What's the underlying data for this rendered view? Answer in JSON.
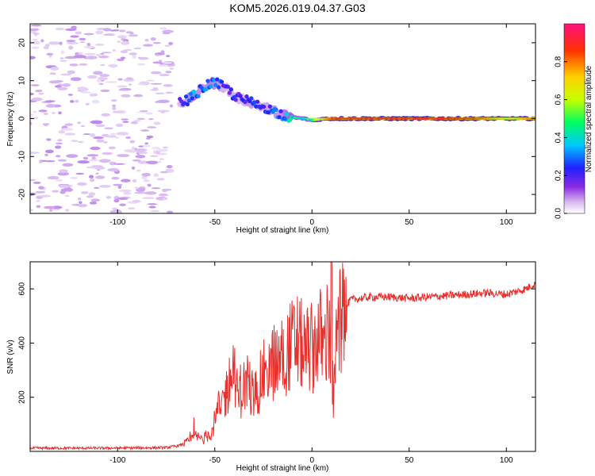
{
  "title": "KOM5.2026.019.04.37.G03",
  "chart_data": [
    {
      "type": "heatmap",
      "xlabel": "Height of straight line (km)",
      "ylabel": "Frequency (Hz)",
      "xlim": [
        -145,
        115
      ],
      "ylim": [
        -25,
        25
      ],
      "xticks": [
        -100,
        -50,
        0,
        50,
        100
      ],
      "yticks": [
        -20,
        -10,
        0,
        10,
        20
      ],
      "colorbar": {
        "label": "Normalized spectral amplitude",
        "range": [
          0.0,
          1.0
        ],
        "ticks": [
          0.0,
          0.2,
          0.4,
          0.6,
          0.8
        ],
        "tick_labels": [
          "0.0",
          "0.2",
          "0.4",
          "0.6",
          "0.8"
        ],
        "colors": [
          "#ffffff",
          "#d8b8f0",
          "#8a2be2",
          "#2020ff",
          "#00c8ff",
          "#00ff60",
          "#c8ff00",
          "#ffd000",
          "#ff3000",
          "#ff1080"
        ]
      },
      "ridge": {
        "x": [
          -68,
          -62,
          -56,
          -52,
          -48,
          -44,
          -40,
          -36,
          -32,
          -28,
          -24,
          -20,
          -16,
          -12,
          -8,
          -4,
          0,
          4,
          8,
          12,
          20,
          40,
          60,
          80,
          100,
          115
        ],
        "y": [
          4,
          5.5,
          8,
          9.5,
          9,
          8,
          6,
          5,
          4.5,
          3.5,
          3,
          2,
          1.2,
          0.6,
          0.2,
          0,
          -0.5,
          -0.2,
          0,
          0,
          0,
          0,
          0,
          0,
          0,
          0
        ],
        "amplitude": [
          0.3,
          0.45,
          0.4,
          0.45,
          0.4,
          0.3,
          0.35,
          0.3,
          0.4,
          0.35,
          0.35,
          0.4,
          0.4,
          0.5,
          0.55,
          0.5,
          0.6,
          0.7,
          0.8,
          0.85,
          0.88,
          0.9,
          0.9,
          0.85,
          0.7,
          0.8
        ]
      }
    },
    {
      "type": "line",
      "xlabel": "Height of straight line (km)",
      "ylabel": "SNR (v/v)",
      "xlim": [
        -145,
        115
      ],
      "ylim": [
        0,
        700
      ],
      "xticks": [
        -100,
        -50,
        0,
        50,
        100
      ],
      "yticks": [
        200,
        400,
        600
      ],
      "color": "#e8302c",
      "series": [
        {
          "name": "SNR",
          "x": [
            -145,
            -130,
            -110,
            -90,
            -75,
            -68,
            -64,
            -60,
            -56,
            -52,
            -50,
            -48,
            -45,
            -42,
            -40,
            -38,
            -36,
            -33,
            -30,
            -27,
            -24,
            -20,
            -16,
            -12,
            -8,
            -4,
            0,
            4,
            6,
            8,
            10,
            11,
            12,
            14,
            17,
            20,
            25,
            30,
            40,
            50,
            60,
            70,
            80,
            90,
            100,
            110,
            115
          ],
          "y": [
            12,
            12,
            12,
            13,
            14,
            22,
            35,
            55,
            45,
            70,
            110,
            150,
            200,
            260,
            320,
            180,
            230,
            260,
            200,
            250,
            300,
            320,
            340,
            380,
            410,
            380,
            380,
            430,
            380,
            430,
            360,
            120,
            350,
            460,
            530,
            560,
            565,
            570,
            570,
            565,
            570,
            575,
            580,
            585,
            580,
            600,
            620
          ]
        }
      ]
    }
  ]
}
